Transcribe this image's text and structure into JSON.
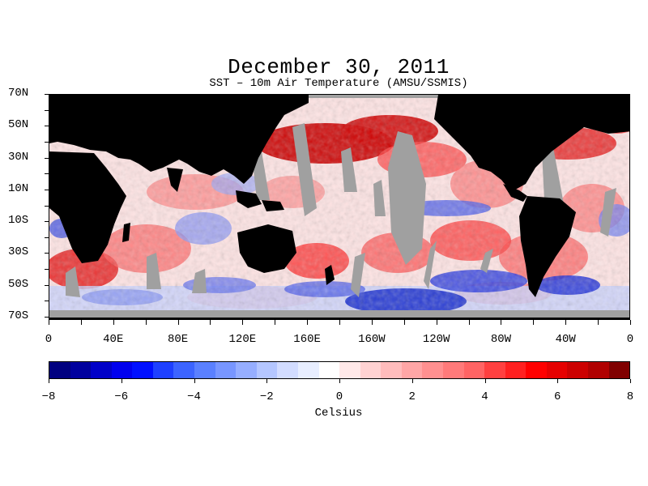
{
  "title": "December 30, 2011",
  "subtitle": "SST – 10m Air Temperature (AMSU/SSMIS)",
  "lat_labels": [
    "70N",
    "50N",
    "30N",
    "10N",
    "10S",
    "30S",
    "50S",
    "70S"
  ],
  "lon_labels": [
    "0",
    "40E",
    "80E",
    "120E",
    "160E",
    "160W",
    "120W",
    "80W",
    "40W",
    "0"
  ],
  "colorbar": {
    "ticks": [
      "−8",
      "−6",
      "−4",
      "−2",
      "0",
      "2",
      "4",
      "6",
      "8"
    ],
    "unit": "Celsius",
    "colors": [
      "#000080",
      "#00009e",
      "#0000c8",
      "#0000ee",
      "#0010ff",
      "#1e40ff",
      "#3c64ff",
      "#5a80ff",
      "#7896ff",
      "#96aeff",
      "#b4c6ff",
      "#d2dcff",
      "#e8eeff",
      "#ffffff",
      "#ffe8e8",
      "#ffd2d2",
      "#ffbcbc",
      "#ffa6a6",
      "#ff9090",
      "#ff7a7a",
      "#ff6464",
      "#ff4040",
      "#ff2020",
      "#ff0000",
      "#e60000",
      "#cc0000",
      "#b00000",
      "#800000"
    ]
  },
  "map_colors": {
    "land": "#000000",
    "missing": "#a0a0a0",
    "warm": "#e01010",
    "cold": "#1a2fd0",
    "neutral": "#ffffff"
  }
}
